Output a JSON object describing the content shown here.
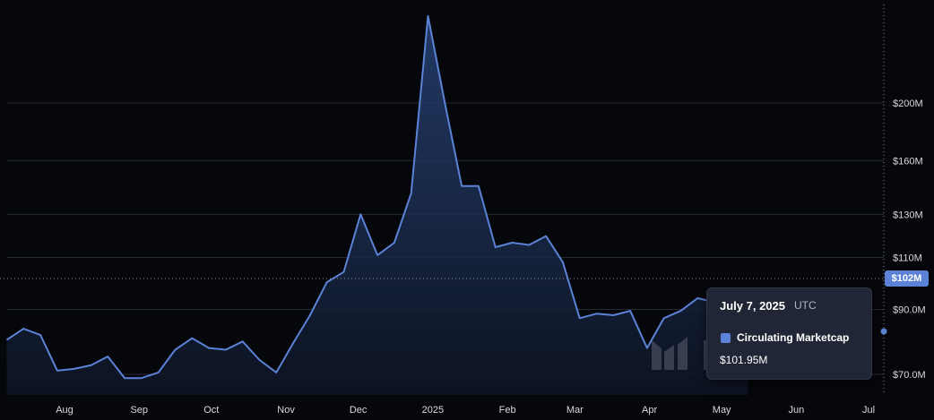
{
  "chart_data": {
    "type": "area",
    "x": [
      "2024-07-08",
      "2024-07-15",
      "2024-07-22",
      "2024-07-29",
      "2024-08-05",
      "2024-08-12",
      "2024-08-19",
      "2024-08-26",
      "2024-09-02",
      "2024-09-09",
      "2024-09-16",
      "2024-09-23",
      "2024-09-30",
      "2024-10-07",
      "2024-10-14",
      "2024-10-21",
      "2024-10-28",
      "2024-11-04",
      "2024-11-11",
      "2024-11-18",
      "2024-11-25",
      "2024-12-02",
      "2024-12-09",
      "2024-12-16",
      "2024-12-23",
      "2024-12-30",
      "2025-01-06",
      "2025-01-13",
      "2025-01-20",
      "2025-01-27",
      "2025-02-03",
      "2025-02-10",
      "2025-02-17",
      "2025-02-24",
      "2025-03-03",
      "2025-03-10",
      "2025-03-17",
      "2025-03-24",
      "2025-03-31",
      "2025-04-07",
      "2025-04-14",
      "2025-04-21",
      "2025-04-28",
      "2025-05-05",
      "2025-05-12"
    ],
    "y": [
      80,
      83.5,
      81.5,
      71,
      71.5,
      72.5,
      75,
      69,
      69,
      70.5,
      77,
      80.5,
      77.5,
      77,
      79.5,
      74,
      70.5,
      79,
      88,
      100,
      104,
      130,
      111,
      116.5,
      141,
      280,
      200,
      145,
      145,
      114.5,
      116.5,
      115.5,
      119.5,
      108,
      87,
      88.5,
      88,
      89.5,
      77.5,
      87,
      89.5,
      94,
      92.5,
      89,
      86
    ],
    "y_tick_labels": [
      "$70.0M",
      "$90.0M",
      "$110M",
      "$130M",
      "$160M",
      "$200M"
    ],
    "y_tick_values": [
      70,
      90,
      110,
      130,
      160,
      200
    ],
    "y_scale": "log",
    "x_tick_labels": [
      "Aug",
      "Sep",
      "Oct",
      "Nov",
      "Dec",
      "2025",
      "Feb",
      "Mar",
      "Apr",
      "May",
      "Jun",
      "Jul"
    ],
    "x_tick_dates": [
      "2024-08-01",
      "2024-09-01",
      "2024-10-01",
      "2024-11-01",
      "2024-12-01",
      "2025-01-01",
      "2025-02-01",
      "2025-03-01",
      "2025-04-01",
      "2025-05-01",
      "2025-06-01",
      "2025-07-01"
    ],
    "last_value_label": "$102M",
    "last_value": 102,
    "crosshair_value": 82,
    "grid": true,
    "colors": {
      "line": "#5b82d6",
      "background": "#06070a",
      "tooltip": "#202635",
      "price_tag": "#5b82d6"
    }
  },
  "tooltip": {
    "date": "July 7, 2025",
    "timezone": "UTC",
    "series_name": "Circulating Marketcap",
    "value": "$101.95M"
  }
}
